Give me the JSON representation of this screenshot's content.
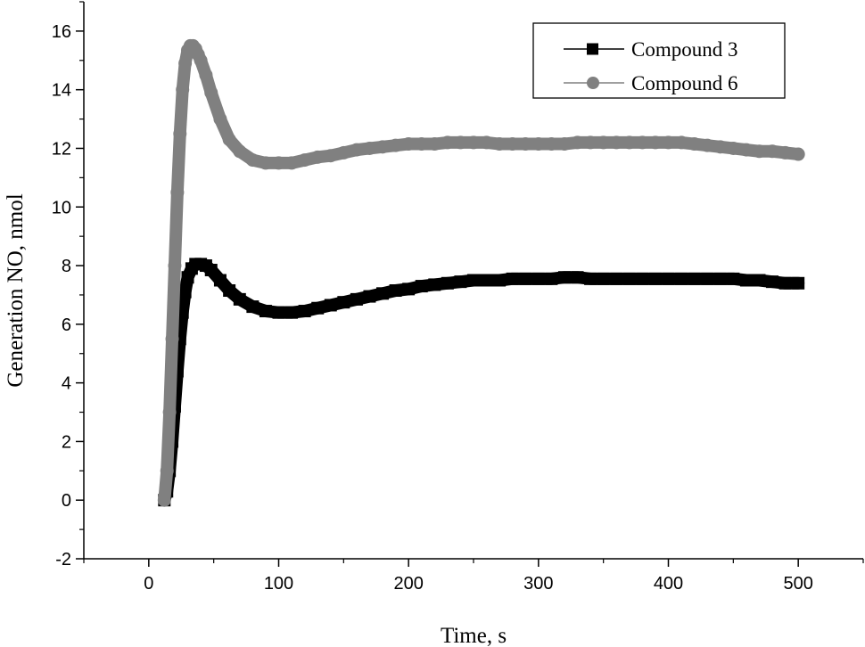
{
  "chart_data": {
    "type": "line",
    "xlabel": "Time, s",
    "ylabel": "Generation NO, nmol",
    "xlim": [
      -50,
      550
    ],
    "ylim": [
      -2,
      17
    ],
    "xticks": [
      0,
      100,
      200,
      300,
      400,
      500
    ],
    "yticks": [
      -2,
      0,
      2,
      4,
      6,
      8,
      10,
      12,
      14,
      16
    ],
    "grid": false,
    "legend_position": "top-right",
    "series": [
      {
        "name": "Compound 3",
        "color": "#000000",
        "marker": "square",
        "x": [
          12,
          14,
          16,
          18,
          20,
          22,
          24,
          26,
          28,
          30,
          33,
          36,
          40,
          44,
          48,
          55,
          62,
          70,
          80,
          90,
          100,
          110,
          120,
          130,
          140,
          150,
          160,
          170,
          180,
          190,
          200,
          210,
          220,
          230,
          240,
          250,
          260,
          270,
          280,
          290,
          300,
          310,
          320,
          330,
          340,
          350,
          360,
          370,
          380,
          390,
          400,
          410,
          420,
          430,
          440,
          450,
          460,
          470,
          480,
          490,
          500
        ],
        "y": [
          0.0,
          0.3,
          1.0,
          2.0,
          3.2,
          4.4,
          5.5,
          6.4,
          7.1,
          7.6,
          7.9,
          8.05,
          8.05,
          8.0,
          7.85,
          7.5,
          7.15,
          6.85,
          6.6,
          6.45,
          6.4,
          6.4,
          6.45,
          6.55,
          6.65,
          6.75,
          6.85,
          6.95,
          7.05,
          7.15,
          7.2,
          7.3,
          7.35,
          7.4,
          7.45,
          7.5,
          7.5,
          7.5,
          7.55,
          7.55,
          7.55,
          7.55,
          7.6,
          7.6,
          7.55,
          7.55,
          7.55,
          7.55,
          7.55,
          7.55,
          7.55,
          7.55,
          7.55,
          7.55,
          7.55,
          7.55,
          7.5,
          7.5,
          7.45,
          7.4,
          7.4
        ]
      },
      {
        "name": "Compound 6",
        "color": "#808080",
        "marker": "circle",
        "x": [
          12,
          14,
          16,
          18,
          20,
          22,
          24,
          26,
          28,
          30,
          32,
          34,
          36,
          38,
          40,
          44,
          48,
          55,
          62,
          70,
          80,
          90,
          100,
          110,
          120,
          130,
          140,
          150,
          160,
          170,
          180,
          190,
          200,
          210,
          220,
          230,
          240,
          250,
          260,
          270,
          280,
          290,
          300,
          310,
          320,
          330,
          340,
          350,
          360,
          370,
          380,
          390,
          400,
          410,
          420,
          430,
          440,
          450,
          460,
          470,
          480,
          490,
          500
        ],
        "y": [
          0.0,
          1.0,
          3.0,
          5.5,
          8.0,
          10.5,
          12.5,
          14.0,
          14.9,
          15.35,
          15.5,
          15.5,
          15.4,
          15.2,
          15.0,
          14.5,
          13.9,
          13.0,
          12.3,
          11.9,
          11.6,
          11.5,
          11.5,
          11.5,
          11.6,
          11.7,
          11.75,
          11.85,
          11.95,
          12.0,
          12.05,
          12.1,
          12.15,
          12.15,
          12.15,
          12.2,
          12.2,
          12.2,
          12.2,
          12.15,
          12.15,
          12.15,
          12.15,
          12.15,
          12.15,
          12.2,
          12.2,
          12.2,
          12.2,
          12.2,
          12.2,
          12.2,
          12.2,
          12.2,
          12.15,
          12.1,
          12.05,
          12.0,
          11.95,
          11.9,
          11.9,
          11.85,
          11.8
        ]
      }
    ]
  }
}
